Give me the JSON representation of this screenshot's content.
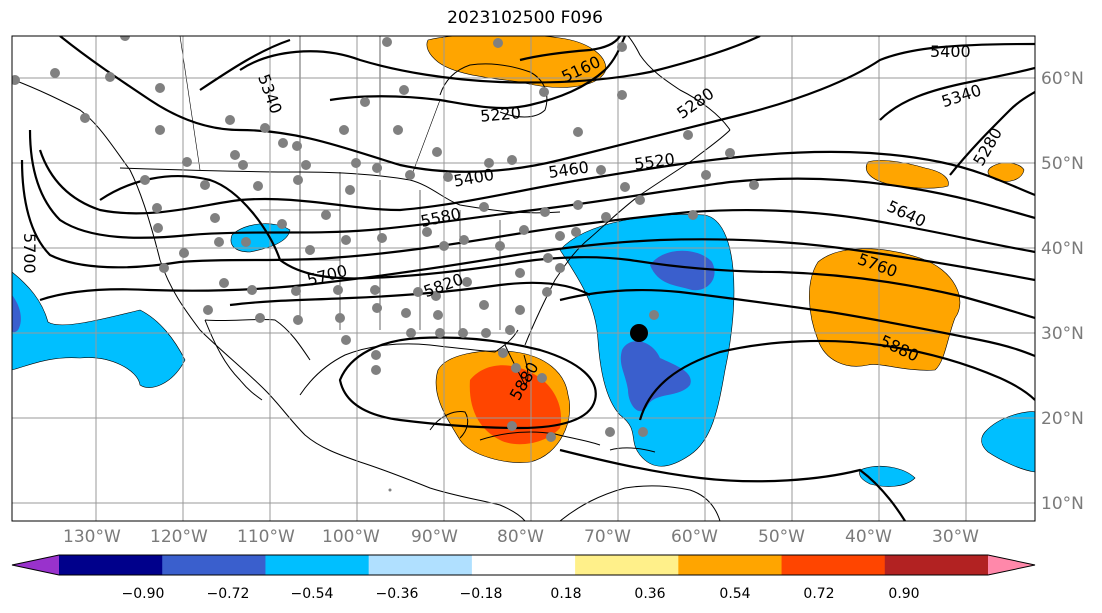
{
  "title": "2023102500 F096",
  "lon_labels": [
    "130°W",
    "120°W",
    "110°W",
    "100°W",
    "90°W",
    "80°W",
    "70°W",
    "60°W",
    "50°W",
    "40°W",
    "30°W"
  ],
  "lat_labels": [
    "60°N",
    "50°N",
    "40°N",
    "30°N",
    "20°N",
    "10°N"
  ],
  "contour_labels": [
    "5340",
    "5220",
    "5160",
    "5280",
    "5400",
    "5340",
    "5280",
    "5400",
    "5460",
    "5520",
    "5580",
    "5640",
    "5700",
    "5760",
    "5700",
    "5820",
    "5880",
    "5880"
  ],
  "colorbar": {
    "tick_labels": [
      "−0.90",
      "−0.72",
      "−0.54",
      "−0.36",
      "−0.18",
      "0.18",
      "0.36",
      "0.54",
      "0.72",
      "0.90"
    ],
    "colors": [
      "#9932cc",
      "#00008b",
      "#3a5fcd",
      "#00bfff",
      "#b0e0ff",
      "#ffffff",
      "#fff08a",
      "#ffa500",
      "#ff4500",
      "#b22222",
      "#ff88aa"
    ]
  },
  "colors": {
    "strong_negative": "#3a5fcd",
    "negative": "#00bfff",
    "positive": "#ffa500",
    "strong_positive": "#ff4500"
  }
}
